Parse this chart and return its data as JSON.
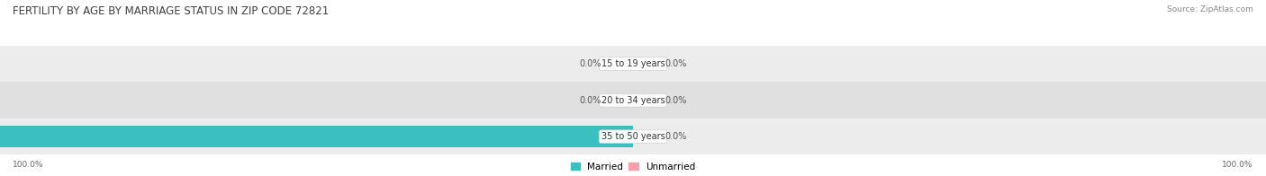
{
  "title": "FERTILITY BY AGE BY MARRIAGE STATUS IN ZIP CODE 72821",
  "source": "Source: ZipAtlas.com",
  "categories": [
    "15 to 19 years",
    "20 to 34 years",
    "35 to 50 years"
  ],
  "married": [
    0.0,
    0.0,
    100.0
  ],
  "unmarried": [
    0.0,
    0.0,
    0.0
  ],
  "married_color": "#3bbfbf",
  "unmarried_color": "#f4a0b0",
  "row_bg_colors": [
    "#ececec",
    "#e0e0e0",
    "#ececec"
  ],
  "title_fontsize": 8.5,
  "source_fontsize": 6.5,
  "label_fontsize": 7,
  "category_fontsize": 7,
  "legend_fontsize": 7.5,
  "axis_label_fontsize": 6.5,
  "bar_height": 0.6,
  "xlim": [
    -100,
    100
  ],
  "left_axis_label": "100.0%",
  "right_axis_label": "100.0%",
  "background_color": "#ffffff"
}
